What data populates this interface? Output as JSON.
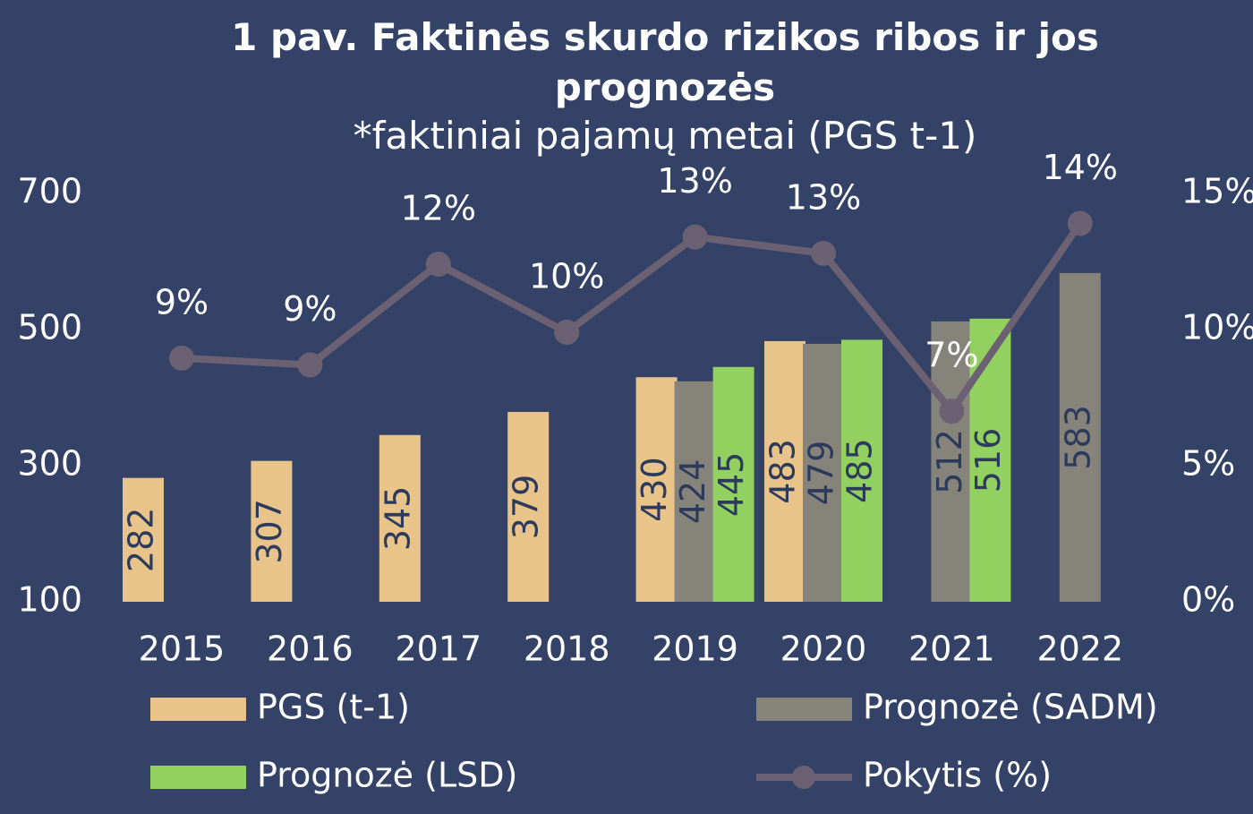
{
  "chart_data": {
    "type": "bar",
    "title": "1 pav. Faktinės skurdo rizikos ribos ir jos prognozės",
    "subtitle": "*faktiniai pajamų metai (PGS t-1)",
    "categories": [
      "2015",
      "2016",
      "2017",
      "2018",
      "2019",
      "2020",
      "2021",
      "2022"
    ],
    "series": [
      {
        "name": "PGS (t-1)",
        "color": "#e8c38a",
        "values": [
          282,
          307,
          345,
          379,
          430,
          483,
          null,
          null
        ]
      },
      {
        "name": "Prognozė (SADM)",
        "color": "#86837a",
        "values": [
          null,
          null,
          null,
          null,
          424,
          479,
          512,
          583
        ]
      },
      {
        "name": "Prognozė (LSD)",
        "color": "#92d060",
        "values": [
          null,
          null,
          null,
          null,
          445,
          485,
          516,
          null
        ]
      },
      {
        "name": "Pokytis (%)",
        "color": "#6c6173",
        "type": "line",
        "axis": "y2",
        "values": [
          8.95,
          8.7,
          12.4,
          9.9,
          13.4,
          12.8,
          7.0,
          13.9
        ],
        "value_labels": [
          "9%",
          "9%",
          "12%",
          "10%",
          "13%",
          "13%",
          "7%",
          "14%"
        ]
      }
    ],
    "ylim": [
      100,
      700
    ],
    "yticks": [
      100,
      300,
      500,
      700
    ],
    "y2lim": [
      0,
      15
    ],
    "y2ticks": [
      {
        "value": 0,
        "label": "0%"
      },
      {
        "value": 5,
        "label": "5%"
      },
      {
        "value": 10,
        "label": "10%"
      },
      {
        "value": 15,
        "label": "15%"
      }
    ],
    "grid": false
  }
}
